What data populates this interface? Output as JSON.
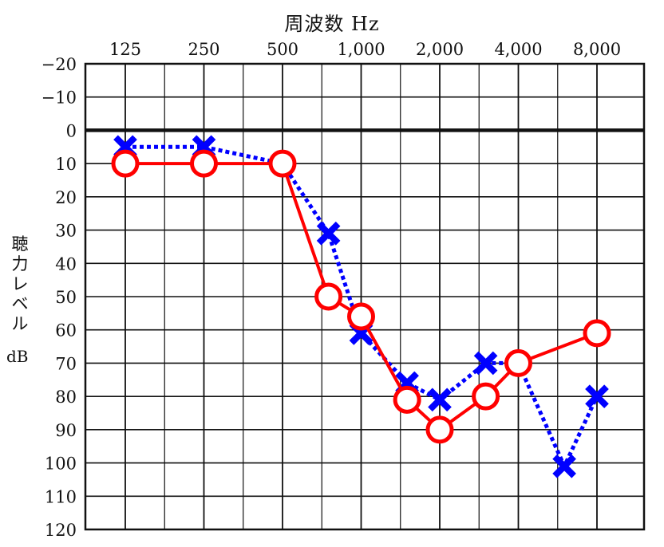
{
  "chart_data": {
    "type": "line",
    "title": "周波数 Hz",
    "ylabel": "聴力レベル",
    "ylabel_chars": [
      "聴",
      "力",
      "レ",
      "ベ",
      "ル"
    ],
    "yunit": "dB",
    "x_tick_labels": [
      {
        "label": "125",
        "x": 125
      },
      {
        "label": "250",
        "x": 250
      },
      {
        "label": "500",
        "x": 500
      },
      {
        "label": "1,000",
        "x": 1000
      },
      {
        "label": "2,000",
        "x": 2000
      },
      {
        "label": "4,000",
        "x": 4000
      },
      {
        "label": "8,000",
        "x": 8000
      }
    ],
    "y_tick_labels": [
      "−20",
      "−10",
      "0",
      "10",
      "20",
      "30",
      "40",
      "50",
      "60",
      "70",
      "80",
      "90",
      "100",
      "110",
      "120"
    ],
    "ylim": [
      -20,
      120
    ],
    "y_inverted": true,
    "x_scale": "log2",
    "grid": true,
    "series": [
      {
        "color": "#ff0000",
        "marker": "circle",
        "line_style": "solid",
        "points": [
          {
            "x": 125,
            "y": 10
          },
          {
            "x": 250,
            "y": 10
          },
          {
            "x": 500,
            "y": 10
          },
          {
            "x": 750,
            "y": 50
          },
          {
            "x": 1000,
            "y": 56
          },
          {
            "x": 1500,
            "y": 81
          },
          {
            "x": 2000,
            "y": 90
          },
          {
            "x": 3000,
            "y": 80
          },
          {
            "x": 4000,
            "y": 70
          },
          {
            "x": 8000,
            "y": 61
          }
        ]
      },
      {
        "color": "#0000ff",
        "marker": "cross",
        "line_style": "dotted",
        "points": [
          {
            "x": 125,
            "y": 5
          },
          {
            "x": 250,
            "y": 5
          },
          {
            "x": 500,
            "y": 10
          },
          {
            "x": 750,
            "y": 31
          },
          {
            "x": 1000,
            "y": 61
          },
          {
            "x": 1500,
            "y": 76
          },
          {
            "x": 2000,
            "y": 81
          },
          {
            "x": 3000,
            "y": 70
          },
          {
            "x": 4000,
            "y": 70
          },
          {
            "x": 6000,
            "y": 101
          },
          {
            "x": 8000,
            "y": 80
          }
        ]
      }
    ]
  }
}
